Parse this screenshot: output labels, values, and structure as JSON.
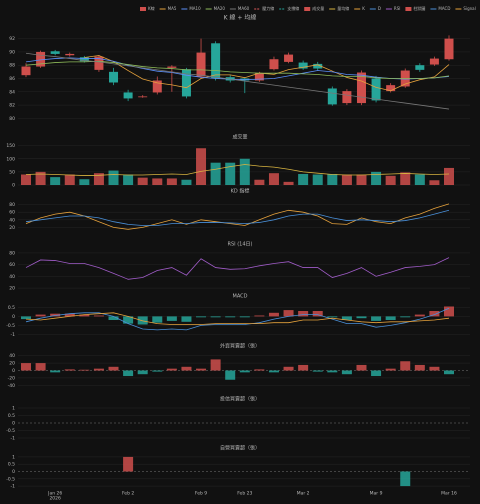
{
  "chart_data": [
    {
      "type": "candlestick",
      "title": "K 線 + 均線",
      "up_color": "#cf4f4c",
      "down_color": "#26a69a",
      "grid": true,
      "categories": [
        null,
        null,
        "Jan 26",
        null,
        null,
        null,
        null,
        "Feb 2",
        null,
        null,
        null,
        null,
        "Feb 9",
        null,
        null,
        "Feb 23",
        null,
        null,
        null,
        "Mar 2",
        null,
        null,
        null,
        null,
        "Mar 9",
        null,
        null,
        null,
        null,
        "Mar 16"
      ],
      "x_year_label": "2026",
      "ylim": [
        79,
        93
      ],
      "yticks": [
        80,
        82,
        84,
        86,
        88,
        90,
        92
      ],
      "series": [
        {
          "name": "K線",
          "kind": "candlestick",
          "open": [
            86.5,
            87.8,
            90.1,
            89.5,
            89.2,
            87.3,
            87.0,
            83.9,
            83.2,
            83.9,
            87.6,
            87.4,
            86.3,
            91.3,
            86.2,
            86.0,
            85.7,
            87.4,
            88.5,
            88.4,
            88.2,
            84.5,
            82.3,
            82.3,
            86.0,
            84.1,
            84.8,
            88.0,
            88.1,
            88.9
          ],
          "high": [
            88.3,
            90.2,
            90.3,
            89.9,
            89.4,
            89.5,
            87.6,
            84.3,
            83.5,
            86.3,
            88.0,
            87.6,
            92.0,
            91.6,
            86.6,
            86.2,
            87.0,
            89.3,
            89.9,
            88.7,
            88.5,
            84.8,
            84.4,
            87.2,
            86.4,
            85.3,
            87.5,
            88.3,
            89.3,
            92.5
          ],
          "low": [
            86.2,
            87.6,
            89.5,
            89.3,
            88.4,
            87.0,
            85.0,
            82.6,
            83.1,
            83.6,
            84.0,
            83.0,
            86.0,
            85.7,
            85.4,
            83.8,
            85.5,
            87.2,
            88.3,
            87.3,
            87.2,
            81.9,
            82.0,
            82.0,
            82.4,
            83.9,
            84.6,
            87.0,
            87.9,
            88.7
          ],
          "close": [
            87.8,
            90.0,
            89.7,
            89.7,
            88.6,
            89.3,
            85.4,
            83.0,
            83.3,
            85.7,
            87.8,
            83.3,
            89.9,
            86.0,
            85.7,
            85.7,
            86.8,
            88.9,
            89.6,
            87.5,
            87.5,
            82.1,
            84.1,
            86.9,
            82.7,
            85.0,
            87.2,
            87.3,
            89.0,
            92.0
          ]
        },
        {
          "name": "MA5",
          "kind": "line",
          "color": "#e6a23c",
          "values": [
            null,
            null,
            null,
            null,
            89.16,
            89.46,
            88.54,
            87.2,
            85.92,
            85.34,
            85.04,
            84.62,
            86.0,
            86.54,
            86.54,
            86.12,
            86.82,
            86.62,
            87.34,
            87.7,
            88.06,
            87.12,
            86.16,
            85.62,
            84.66,
            84.16,
            85.18,
            85.82,
            86.24,
            88.1
          ]
        },
        {
          "name": "MA10",
          "kind": "line",
          "color": "#5b8ff9",
          "values": [
            88.5,
            88.8,
            89.0,
            89.1,
            89.0,
            89.0,
            88.6,
            88.0,
            87.5,
            87.1,
            86.9,
            86.5,
            86.2,
            86.0,
            85.9,
            85.8,
            85.9,
            86.0,
            86.4,
            86.8,
            87.2,
            87.0,
            86.6,
            86.5,
            86.2,
            86.0,
            85.9,
            86.0,
            86.1,
            86.3
          ]
        },
        {
          "name": "MA20",
          "kind": "line",
          "color": "#8fbc5a",
          "values": [
            88.0,
            88.2,
            88.4,
            88.5,
            88.5,
            88.6,
            88.4,
            88.1,
            87.8,
            87.6,
            87.5,
            87.3,
            87.3,
            87.2,
            87.0,
            86.9,
            86.8,
            86.8,
            86.8,
            86.7,
            86.6,
            86.4,
            86.3,
            86.3,
            86.1,
            86.0,
            86.0,
            86.0,
            86.1,
            86.4
          ]
        },
        {
          "name": "MA60",
          "kind": "line",
          "color": "#777777",
          "values": [
            89.8,
            89.5,
            89.3,
            89.0,
            88.7,
            88.5,
            88.2,
            87.9,
            87.6,
            87.3,
            87.0,
            86.7,
            86.5,
            86.2,
            85.9,
            85.6,
            85.3,
            85.0,
            84.7,
            84.4,
            84.1,
            83.8,
            83.5,
            83.2,
            82.9,
            82.6,
            82.3,
            82.0,
            81.7,
            81.4
          ]
        },
        {
          "name": "壓力線",
          "kind": "line",
          "color": "#e05a5a",
          "dash": true,
          "values": [
            null,
            null,
            null,
            null,
            null,
            null,
            null,
            null,
            null,
            null,
            null,
            null,
            null,
            null,
            null,
            null,
            null,
            null,
            null,
            null,
            null,
            86.5,
            null,
            null,
            null,
            null,
            null,
            null,
            null,
            92.0
          ]
        },
        {
          "name": "支撐線",
          "kind": "line",
          "color": "#26a69a",
          "dash": true,
          "values": [
            null,
            null,
            null,
            null,
            null,
            null,
            null,
            null,
            null,
            null,
            null,
            null,
            null,
            null,
            null,
            null,
            null,
            null,
            null,
            null,
            null,
            83.8,
            null,
            null,
            null,
            null,
            null,
            null,
            null,
            83.8
          ]
        }
      ]
    },
    {
      "type": "bar",
      "title": "成交量",
      "grid": true,
      "ylim": [
        0,
        160
      ],
      "yticks": [
        0,
        50,
        100,
        150
      ],
      "series": [
        {
          "name": "成交量",
          "kind": "bar",
          "color_by": "candle",
          "color": "#cf4f4c",
          "values": [
            40,
            50,
            30,
            40,
            22,
            45,
            55,
            40,
            28,
            25,
            25,
            20,
            140,
            85,
            85,
            100,
            20,
            45,
            12,
            42,
            40,
            42,
            40,
            40,
            50,
            35,
            48,
            40,
            18,
            65
          ]
        },
        {
          "name": "量均線",
          "kind": "line",
          "color": "#d8b440",
          "values": [
            40,
            42,
            40,
            38,
            36,
            37,
            40,
            38,
            38,
            40,
            42,
            40,
            52,
            60,
            70,
            78,
            72,
            68,
            60,
            50,
            45,
            40,
            38,
            38,
            40,
            42,
            44,
            42,
            40,
            42
          ]
        }
      ]
    },
    {
      "type": "line",
      "title": "KD 指標",
      "grid": true,
      "ylim": [
        0,
        100
      ],
      "yticks": [
        20,
        40,
        60,
        80
      ],
      "series": [
        {
          "name": "K",
          "kind": "line",
          "color": "#e6a23c",
          "values": [
            30,
            45,
            55,
            60,
            50,
            35,
            20,
            15,
            20,
            30,
            40,
            28,
            40,
            35,
            30,
            25,
            40,
            55,
            65,
            60,
            50,
            30,
            28,
            45,
            35,
            30,
            45,
            55,
            70,
            82
          ]
        },
        {
          "name": "D",
          "kind": "line",
          "color": "#4a90d9",
          "values": [
            35,
            40,
            45,
            50,
            50,
            45,
            35,
            28,
            25,
            25,
            30,
            30,
            33,
            33,
            32,
            30,
            33,
            40,
            50,
            55,
            55,
            45,
            38,
            40,
            38,
            35,
            38,
            45,
            55,
            65
          ]
        }
      ]
    },
    {
      "type": "line",
      "title": "RSI (14日)",
      "grid": true,
      "ylim": [
        15,
        85
      ],
      "yticks": [
        20,
        40,
        60,
        80
      ],
      "series": [
        {
          "name": "RSI",
          "kind": "line",
          "color": "#a05cc8",
          "values": [
            55,
            68,
            67,
            62,
            62,
            55,
            45,
            35,
            38,
            50,
            55,
            42,
            70,
            55,
            52,
            53,
            58,
            62,
            65,
            55,
            55,
            38,
            45,
            55,
            40,
            47,
            55,
            57,
            60,
            72
          ]
        }
      ]
    },
    {
      "type": "bar",
      "title": "MACD",
      "grid": true,
      "ylim": [
        -1.2,
        0.8
      ],
      "yticks": [
        -1,
        -0.5,
        0,
        0.5
      ],
      "series": [
        {
          "name": "柱狀圖",
          "kind": "bar",
          "up_color": "#cf4f4c",
          "down_color": "#26a69a",
          "color": "#cf4f4c",
          "values": [
            -0.15,
            0.1,
            0.15,
            0.15,
            0.1,
            0.05,
            -0.2,
            -0.4,
            -0.45,
            -0.35,
            -0.25,
            -0.3,
            -0.05,
            -0.05,
            -0.05,
            -0.05,
            0.05,
            0.2,
            0.35,
            0.3,
            0.3,
            -0.05,
            -0.2,
            -0.1,
            -0.25,
            -0.2,
            -0.05,
            0.1,
            0.3,
            0.55
          ]
        },
        {
          "name": "MACD",
          "kind": "line",
          "color": "#4a90d9",
          "values": [
            -0.3,
            -0.1,
            0.05,
            0.15,
            0.2,
            0.2,
            0.0,
            -0.4,
            -0.7,
            -0.75,
            -0.7,
            -0.75,
            -0.5,
            -0.45,
            -0.45,
            -0.45,
            -0.35,
            -0.15,
            0.0,
            0.1,
            0.1,
            -0.15,
            -0.4,
            -0.4,
            -0.6,
            -0.5,
            -0.35,
            -0.15,
            0.1,
            0.45
          ]
        },
        {
          "name": "Signal",
          "kind": "line",
          "color": "#e6a23c",
          "values": [
            -0.15,
            -0.2,
            -0.1,
            0.0,
            0.1,
            0.15,
            0.2,
            0.0,
            -0.25,
            -0.4,
            -0.45,
            -0.45,
            -0.45,
            -0.4,
            -0.4,
            -0.4,
            -0.4,
            -0.35,
            -0.35,
            -0.2,
            -0.2,
            -0.1,
            -0.2,
            -0.3,
            -0.35,
            -0.3,
            -0.3,
            -0.25,
            -0.2,
            -0.1
          ]
        }
      ]
    },
    {
      "type": "bar",
      "title": "外資買賣超（張）",
      "grid": true,
      "zero_dashed": true,
      "ylim": [
        -50,
        50
      ],
      "yticks": [
        -40,
        -20,
        0,
        20,
        40
      ],
      "series": [
        {
          "kind": "bar",
          "up_color": "#cf4f4c",
          "down_color": "#26a69a",
          "values": [
            20,
            20,
            -5,
            3,
            2,
            5,
            10,
            -15,
            -10,
            -3,
            5,
            10,
            5,
            30,
            -25,
            -5,
            3,
            -5,
            10,
            15,
            -3,
            -5,
            -10,
            15,
            -15,
            5,
            25,
            15,
            10,
            -10
          ]
        }
      ]
    },
    {
      "type": "bar",
      "title": "投信買賣超（張）",
      "grid": true,
      "zero_dashed": true,
      "ylim": [
        -1.2,
        1.2
      ],
      "yticks": [
        -1,
        -0.5,
        0,
        0.5,
        1
      ],
      "series": [
        {
          "kind": "bar",
          "up_color": "#cf4f4c",
          "down_color": "#26a69a",
          "values": [
            0,
            0,
            0,
            0,
            0,
            0,
            0,
            0,
            0,
            0,
            0,
            0,
            0,
            0,
            0,
            0,
            0,
            0,
            0,
            0,
            0,
            0,
            0,
            0,
            0,
            0,
            0,
            0,
            0,
            0
          ]
        }
      ]
    },
    {
      "type": "bar",
      "title": "自營買賣超（張）",
      "grid": true,
      "zero_dashed": true,
      "ylim": [
        -1.2,
        1.2
      ],
      "yticks": [
        -1,
        -0.5,
        0,
        0.5,
        1
      ],
      "series": [
        {
          "kind": "bar",
          "up_color": "#cf4f4c",
          "down_color": "#26a69a",
          "values": [
            0,
            0,
            0,
            0,
            0,
            0,
            0,
            1,
            0,
            0,
            0,
            0,
            0,
            0,
            0,
            0,
            0,
            0,
            0,
            0,
            0,
            0,
            0,
            0,
            0,
            0,
            -1,
            0,
            0,
            0
          ]
        }
      ]
    }
  ]
}
